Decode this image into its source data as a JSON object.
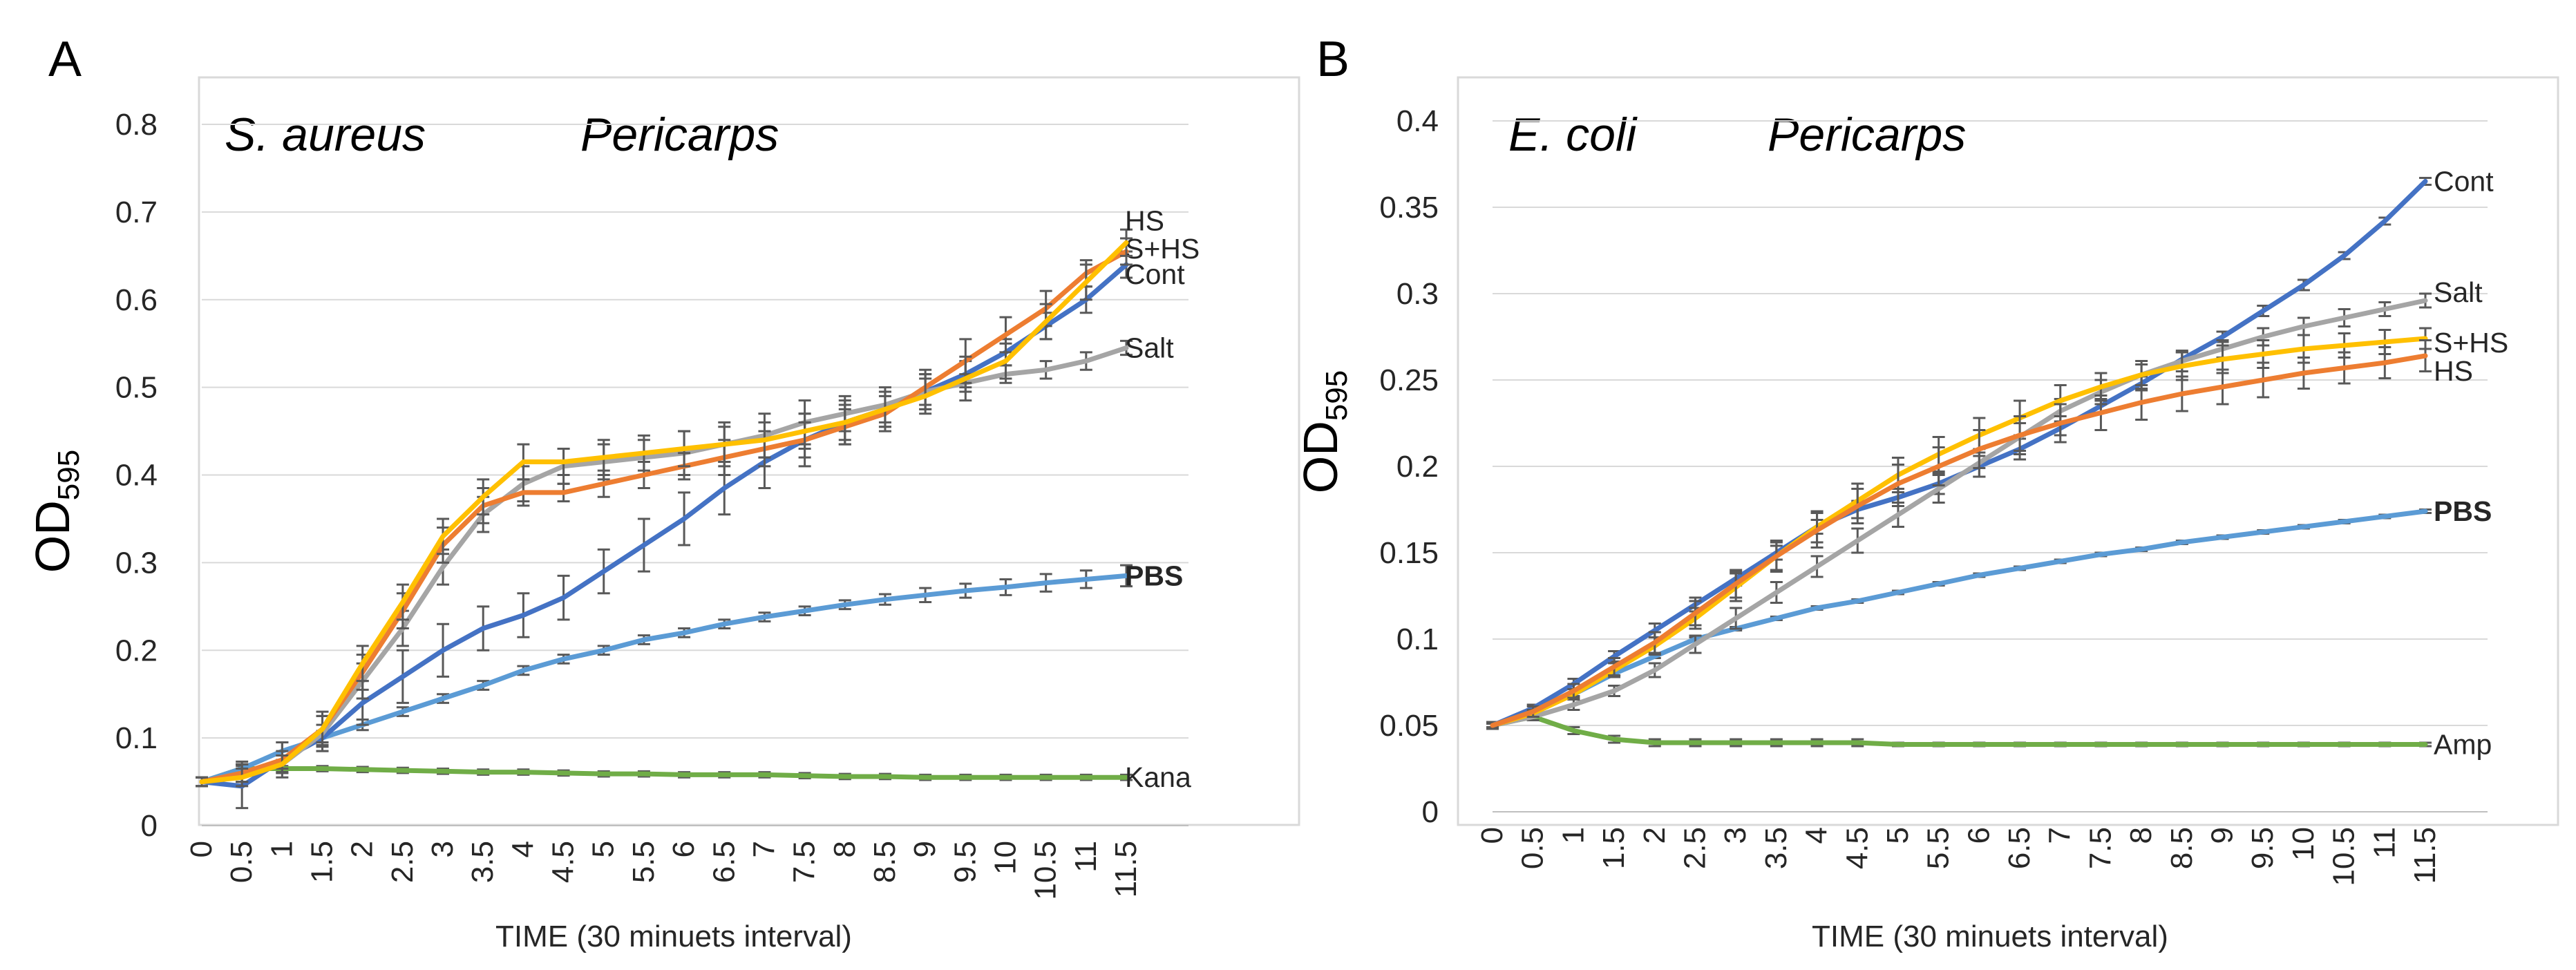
{
  "chart_data": [
    {
      "type": "line",
      "panel_letter": "A",
      "title": "S. aureus",
      "subtitle": "Pericarps",
      "xlabel": "TIME (30 minuets interval)",
      "ylabel": "OD",
      "ylabel_sub": "595",
      "ylim": [
        0,
        0.8
      ],
      "yticks": [
        "0",
        "0.1",
        "0.2",
        "0.3",
        "0.4",
        "0.5",
        "0.6",
        "0.7",
        "0.8"
      ],
      "grid": true,
      "x": [
        "0",
        "0.5",
        "1",
        "1.5",
        "2",
        "2.5",
        "3",
        "3.5",
        "4",
        "4.5",
        "5",
        "5.5",
        "6",
        "6.5",
        "7",
        "7.5",
        "8",
        "8.5",
        "9",
        "9.5",
        "10",
        "10.5",
        "11",
        "11.5"
      ],
      "series": [
        {
          "name": "Kana",
          "color": "#70ad47",
          "bold": false,
          "values": [
            0.05,
            0.065,
            0.065,
            0.065,
            0.064,
            0.063,
            0.062,
            0.061,
            0.061,
            0.06,
            0.059,
            0.059,
            0.058,
            0.058,
            0.058,
            0.057,
            0.056,
            0.056,
            0.055,
            0.055,
            0.055,
            0.055,
            0.055,
            0.055
          ],
          "errors": [
            0.005,
            0.003,
            0.003,
            0.003,
            0.003,
            0.003,
            0.003,
            0.003,
            0.003,
            0.003,
            0.003,
            0.003,
            0.003,
            0.003,
            0.003,
            0.003,
            0.003,
            0.003,
            0.003,
            0.003,
            0.003,
            0.003,
            0.003,
            0.003
          ]
        },
        {
          "name": "PBS",
          "color": "#5b9bd5",
          "bold": true,
          "values": [
            0.05,
            0.065,
            0.085,
            0.1,
            0.115,
            0.13,
            0.145,
            0.16,
            0.177,
            0.19,
            0.2,
            0.212,
            0.22,
            0.23,
            0.238,
            0.245,
            0.252,
            0.258,
            0.263,
            0.268,
            0.272,
            0.277,
            0.281,
            0.285
          ],
          "errors": [
            0.005,
            0.008,
            0.01,
            0.008,
            0.006,
            0.005,
            0.005,
            0.005,
            0.005,
            0.005,
            0.005,
            0.005,
            0.005,
            0.005,
            0.005,
            0.005,
            0.005,
            0.006,
            0.008,
            0.008,
            0.009,
            0.01,
            0.01,
            0.012
          ]
        },
        {
          "name": "Cont",
          "color": "#4472c4",
          "bold": false,
          "values": [
            0.05,
            0.045,
            0.075,
            0.1,
            0.14,
            0.17,
            0.2,
            0.225,
            0.24,
            0.26,
            0.29,
            0.32,
            0.35,
            0.385,
            0.415,
            0.44,
            0.46,
            0.475,
            0.495,
            0.515,
            0.54,
            0.57,
            0.6,
            0.64
          ],
          "errors": [
            0.005,
            0.025,
            0.02,
            0.015,
            0.025,
            0.03,
            0.03,
            0.025,
            0.025,
            0.025,
            0.025,
            0.03,
            0.03,
            0.03,
            0.03,
            0.03,
            0.025,
            0.02,
            0.02,
            0.015,
            0.015,
            0.015,
            0.015,
            0.015
          ]
        },
        {
          "name": "Salt",
          "color": "#a5a5a5",
          "bold": false,
          "values": [
            0.05,
            0.06,
            0.07,
            0.105,
            0.165,
            0.225,
            0.295,
            0.355,
            0.39,
            0.41,
            0.415,
            0.42,
            0.425,
            0.435,
            0.445,
            0.46,
            0.47,
            0.48,
            0.495,
            0.505,
            0.515,
            0.52,
            0.53,
            0.545
          ],
          "errors": [
            0.005,
            0.01,
            0.01,
            0.02,
            0.02,
            0.02,
            0.02,
            0.02,
            0.02,
            0.02,
            0.02,
            0.02,
            0.025,
            0.025,
            0.025,
            0.025,
            0.02,
            0.02,
            0.02,
            0.01,
            0.01,
            0.01,
            0.01,
            0.008
          ]
        },
        {
          "name": "S+HS",
          "color": "#ed7d31",
          "bold": false,
          "values": [
            0.05,
            0.06,
            0.075,
            0.11,
            0.175,
            0.245,
            0.32,
            0.365,
            0.38,
            0.38,
            0.39,
            0.4,
            0.41,
            0.42,
            0.43,
            0.44,
            0.455,
            0.47,
            0.5,
            0.53,
            0.56,
            0.59,
            0.63,
            0.655
          ],
          "errors": [
            0.005,
            0.01,
            0.01,
            0.015,
            0.02,
            0.02,
            0.02,
            0.02,
            0.015,
            0.01,
            0.015,
            0.015,
            0.015,
            0.02,
            0.02,
            0.02,
            0.02,
            0.02,
            0.02,
            0.025,
            0.02,
            0.02,
            0.015,
            0.015
          ]
        },
        {
          "name": "HS",
          "color": "#ffc000",
          "bold": false,
          "values": [
            0.05,
            0.055,
            0.07,
            0.11,
            0.185,
            0.255,
            0.33,
            0.375,
            0.415,
            0.415,
            0.42,
            0.425,
            0.43,
            0.435,
            0.44,
            0.45,
            0.46,
            0.475,
            0.49,
            0.51,
            0.53,
            0.575,
            0.62,
            0.665
          ],
          "errors": [
            0.005,
            0.01,
            0.01,
            0.02,
            0.02,
            0.02,
            0.02,
            0.02,
            0.02,
            0.015,
            0.02,
            0.02,
            0.02,
            0.02,
            0.02,
            0.02,
            0.02,
            0.02,
            0.02,
            0.025,
            0.02,
            0.02,
            0.02,
            0.015
          ]
        }
      ]
    },
    {
      "type": "line",
      "panel_letter": "B",
      "title": "E. coli",
      "subtitle": "Pericarps",
      "xlabel": "TIME (30 minuets interval)",
      "ylabel": "OD",
      "ylabel_sub": "595",
      "ylim": [
        0,
        0.4
      ],
      "yticks": [
        "0",
        "0.05",
        "0.1",
        "0.15",
        "0.2",
        "0.25",
        "0.3",
        "0.35",
        "0.4"
      ],
      "grid": true,
      "x": [
        "0",
        "0.5",
        "1",
        "1.5",
        "2",
        "2.5",
        "3",
        "3.5",
        "4",
        "4.5",
        "5",
        "5.5",
        "6",
        "6.5",
        "7",
        "7.5",
        "8",
        "8.5",
        "9",
        "9.5",
        "10",
        "10.5",
        "11",
        "11.5"
      ],
      "series": [
        {
          "name": "Amp",
          "color": "#70ad47",
          "bold": false,
          "values": [
            0.05,
            0.055,
            0.047,
            0.042,
            0.04,
            0.04,
            0.04,
            0.04,
            0.04,
            0.04,
            0.039,
            0.039,
            0.039,
            0.039,
            0.039,
            0.039,
            0.039,
            0.039,
            0.039,
            0.039,
            0.039,
            0.039,
            0.039,
            0.039
          ],
          "errors": [
            0.002,
            0.002,
            0.002,
            0.002,
            0.002,
            0.002,
            0.002,
            0.002,
            0.002,
            0.002,
            0.001,
            0.001,
            0.001,
            0.001,
            0.001,
            0.001,
            0.001,
            0.001,
            0.001,
            0.001,
            0.001,
            0.001,
            0.001,
            0.001
          ]
        },
        {
          "name": "PBS",
          "color": "#5b9bd5",
          "bold": true,
          "values": [
            0.05,
            0.058,
            0.068,
            0.08,
            0.09,
            0.1,
            0.106,
            0.112,
            0.118,
            0.122,
            0.127,
            0.132,
            0.137,
            0.141,
            0.145,
            0.149,
            0.152,
            0.156,
            0.159,
            0.162,
            0.165,
            0.168,
            0.171,
            0.174
          ],
          "errors": [
            0.001,
            0.001,
            0.001,
            0.001,
            0.001,
            0.001,
            0.001,
            0.001,
            0.001,
            0.001,
            0.001,
            0.001,
            0.001,
            0.001,
            0.001,
            0.001,
            0.001,
            0.001,
            0.001,
            0.001,
            0.001,
            0.001,
            0.001,
            0.001
          ]
        },
        {
          "name": "Cont",
          "color": "#4472c4",
          "bold": false,
          "values": [
            0.05,
            0.06,
            0.074,
            0.09,
            0.105,
            0.12,
            0.135,
            0.15,
            0.165,
            0.175,
            0.182,
            0.19,
            0.2,
            0.21,
            0.222,
            0.235,
            0.248,
            0.262,
            0.275,
            0.29,
            0.305,
            0.322,
            0.342,
            0.365
          ],
          "errors": [
            0.001,
            0.002,
            0.003,
            0.003,
            0.004,
            0.004,
            0.004,
            0.004,
            0.004,
            0.005,
            0.005,
            0.006,
            0.006,
            0.006,
            0.004,
            0.004,
            0.004,
            0.004,
            0.003,
            0.003,
            0.003,
            0.002,
            0.002,
            0.002
          ]
        },
        {
          "name": "Salt",
          "color": "#a5a5a5",
          "bold": false,
          "values": [
            0.05,
            0.055,
            0.062,
            0.07,
            0.082,
            0.097,
            0.112,
            0.127,
            0.142,
            0.157,
            0.172,
            0.187,
            0.202,
            0.217,
            0.232,
            0.243,
            0.253,
            0.261,
            0.268,
            0.275,
            0.281,
            0.286,
            0.291,
            0.296
          ],
          "errors": [
            0.001,
            0.002,
            0.003,
            0.003,
            0.004,
            0.005,
            0.006,
            0.006,
            0.006,
            0.007,
            0.007,
            0.008,
            0.008,
            0.008,
            0.007,
            0.007,
            0.006,
            0.006,
            0.005,
            0.005,
            0.005,
            0.005,
            0.004,
            0.004
          ]
        },
        {
          "name": "S+HS",
          "color": "#ffc000",
          "bold": false,
          "values": [
            0.05,
            0.057,
            0.068,
            0.082,
            0.096,
            0.112,
            0.13,
            0.148,
            0.165,
            0.18,
            0.195,
            0.207,
            0.218,
            0.228,
            0.238,
            0.246,
            0.253,
            0.258,
            0.262,
            0.265,
            0.268,
            0.27,
            0.272,
            0.274
          ],
          "errors": [
            0.001,
            0.002,
            0.003,
            0.004,
            0.005,
            0.006,
            0.008,
            0.008,
            0.009,
            0.01,
            0.01,
            0.01,
            0.01,
            0.01,
            0.009,
            0.008,
            0.008,
            0.008,
            0.008,
            0.008,
            0.008,
            0.007,
            0.007,
            0.006
          ]
        },
        {
          "name": "HS",
          "color": "#ed7d31",
          "bold": false,
          "values": [
            0.05,
            0.058,
            0.07,
            0.084,
            0.098,
            0.115,
            0.132,
            0.148,
            0.163,
            0.177,
            0.19,
            0.2,
            0.21,
            0.218,
            0.225,
            0.231,
            0.237,
            0.242,
            0.246,
            0.25,
            0.254,
            0.257,
            0.26,
            0.264
          ],
          "errors": [
            0.001,
            0.003,
            0.004,
            0.005,
            0.006,
            0.007,
            0.008,
            0.009,
            0.01,
            0.01,
            0.011,
            0.011,
            0.011,
            0.011,
            0.011,
            0.01,
            0.01,
            0.01,
            0.01,
            0.01,
            0.009,
            0.009,
            0.009,
            0.009
          ]
        }
      ]
    }
  ]
}
